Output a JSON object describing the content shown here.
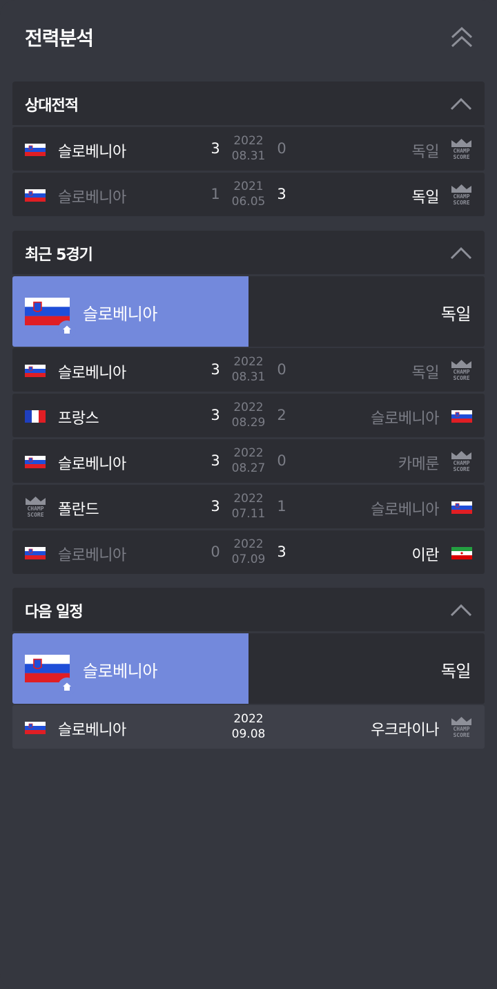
{
  "title": "전력분석",
  "sections": {
    "h2h": {
      "title": "상대전적",
      "rows": [
        {
          "home": "슬로베니아",
          "home_score": "3",
          "year": "2022",
          "date": "08.31",
          "away_score": "0",
          "away": "독일"
        },
        {
          "home": "슬로베니아",
          "home_score": "1",
          "year": "2021",
          "date": "06.05",
          "away_score": "3",
          "away": "독일"
        }
      ]
    },
    "recent": {
      "title": "최근 5경기",
      "banner": {
        "home": "슬로베니아",
        "away": "독일"
      },
      "rows": [
        {
          "home": "슬로베니아",
          "home_score": "3",
          "year": "2022",
          "date": "08.31",
          "away_score": "0",
          "away": "독일"
        },
        {
          "home": "프랑스",
          "home_score": "3",
          "year": "2022",
          "date": "08.29",
          "away_score": "2",
          "away": "슬로베니아"
        },
        {
          "home": "슬로베니아",
          "home_score": "3",
          "year": "2022",
          "date": "08.27",
          "away_score": "0",
          "away": "카메룬"
        },
        {
          "home": "폴란드",
          "home_score": "3",
          "year": "2022",
          "date": "07.11",
          "away_score": "1",
          "away": "슬로베니아"
        },
        {
          "home": "슬로베니아",
          "home_score": "0",
          "year": "2022",
          "date": "07.09",
          "away_score": "3",
          "away": "이란"
        }
      ]
    },
    "next": {
      "title": "다음 일정",
      "banner": {
        "home": "슬로베니아",
        "away": "독일"
      },
      "rows": [
        {
          "home": "슬로베니아",
          "year": "2022",
          "date": "09.08",
          "away": "우크라이나"
        }
      ]
    }
  },
  "icons": {
    "collapse_all": "double-chevron-up-icon",
    "collapse": "chevron-up-icon",
    "home": "home-icon",
    "placeholder_logo": "champscore-logo",
    "flags": [
      "slovenia-flag",
      "france-flag",
      "iran-flag"
    ]
  },
  "colors": {
    "background": "#35373f",
    "panel": "#2c2d33",
    "home_banner": "#7389dc",
    "dim_text": "#7b7d86",
    "text": "#ffffff"
  }
}
